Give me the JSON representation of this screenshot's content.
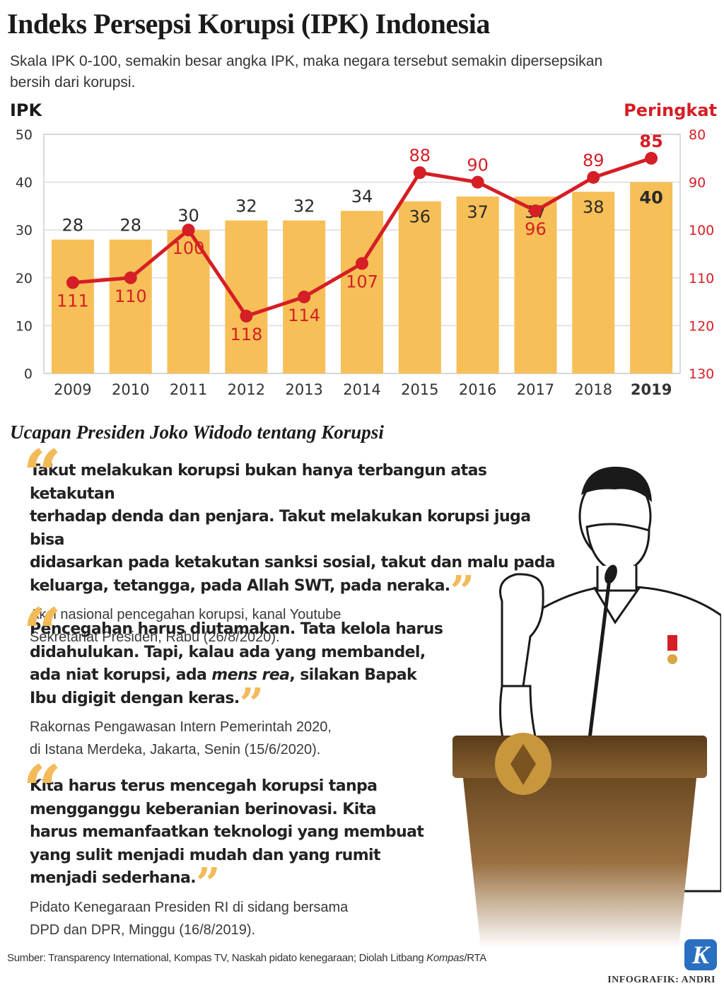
{
  "header": {
    "title": "Indeks Persepsi Korupsi (IPK) Indonesia",
    "subtitle_line1": "Skala IPK 0-100, semakin besar angka IPK, maka negara tersebut semakin dipersepsikan",
    "subtitle_line2": "bersih dari korupsi."
  },
  "chart_data": {
    "type": "bar",
    "categories": [
      "2009",
      "2010",
      "2011",
      "2012",
      "2013",
      "2014",
      "2015",
      "2016",
      "2017",
      "2018",
      "2019"
    ],
    "highlight_category": "2019",
    "y_left": {
      "label": "IPK",
      "range": [
        0,
        50
      ],
      "ticks": [
        0,
        10,
        20,
        30,
        40,
        50
      ]
    },
    "y_right": {
      "label": "Peringkat",
      "range": [
        80,
        130
      ],
      "ticks": [
        80,
        90,
        100,
        110,
        120,
        130
      ],
      "inverted": true
    },
    "grid": true,
    "series": [
      {
        "name": "IPK",
        "kind": "bar",
        "axis": "left",
        "color": "#f7bf57",
        "values": [
          28,
          28,
          30,
          32,
          32,
          34,
          36,
          37,
          37,
          38,
          40
        ]
      },
      {
        "name": "Peringkat",
        "kind": "line",
        "axis": "right",
        "color": "#d51e25",
        "values": [
          111,
          110,
          100,
          118,
          114,
          107,
          88,
          90,
          96,
          89,
          85
        ]
      }
    ]
  },
  "quotes_section": {
    "title": "Ucapan Presiden Joko Widodo tentang Korupsi",
    "quotes": [
      {
        "lines": [
          "Takut melakukan korupsi bukan hanya terbangun atas ketakutan",
          "terhadap denda dan penjara. Takut melakukan korupsi juga bisa",
          "didasarkan pada ketakutan sanksi sosial, takut dan malu pada",
          "keluarga, tetangga, pada Allah SWT, pada neraka."
        ],
        "source": [
          "Aksi nasional pencegahan korupsi, kanal Youtube",
          "Sekretariat Presiden, Rabu (26/8/2020)."
        ]
      },
      {
        "lines": [
          "Pencegahan harus diutamakan. Tata kelola harus",
          "didahulukan. Tapi, kalau ada yang membandel,",
          "ada niat korupsi, ada ",
          "mens rea",
          ", silakan Bapak",
          "Ibu digigit dengan keras."
        ],
        "source": [
          "Rakornas Pengawasan Intern Pemerintah 2020,",
          "di Istana Merdeka, Jakarta, Senin (15/6/2020)."
        ]
      },
      {
        "lines": [
          "Kita harus terus mencegah korupsi tanpa",
          "mengganggu keberanian berinovasi. Kita",
          "harus memanfaatkan teknologi yang membuat",
          "yang sulit menjadi mudah dan yang rumit",
          "menjadi sederhana."
        ],
        "source": [
          "Pidato Kenegaraan Presiden RI di sidang bersama",
          "DPD dan DPR, Minggu (16/8/2019)."
        ]
      }
    ]
  },
  "footer": {
    "source_prefix": "Sumber: Transparency International, Kompas TV, Naskah pidato kenegaraan; Diolah Litbang ",
    "source_italic": "Kompas",
    "source_suffix": "/RTA",
    "credit": "INFOGRAFIK: ANDRI",
    "logo_letter": "K"
  },
  "colors": {
    "bar": "#f7bf57",
    "line": "#d51e25",
    "quote_mark": "#f3ba59",
    "logo": "#2a6fc0"
  },
  "icons": [
    "open-quote-icon",
    "close-quote-icon",
    "kompas-logo-icon"
  ]
}
